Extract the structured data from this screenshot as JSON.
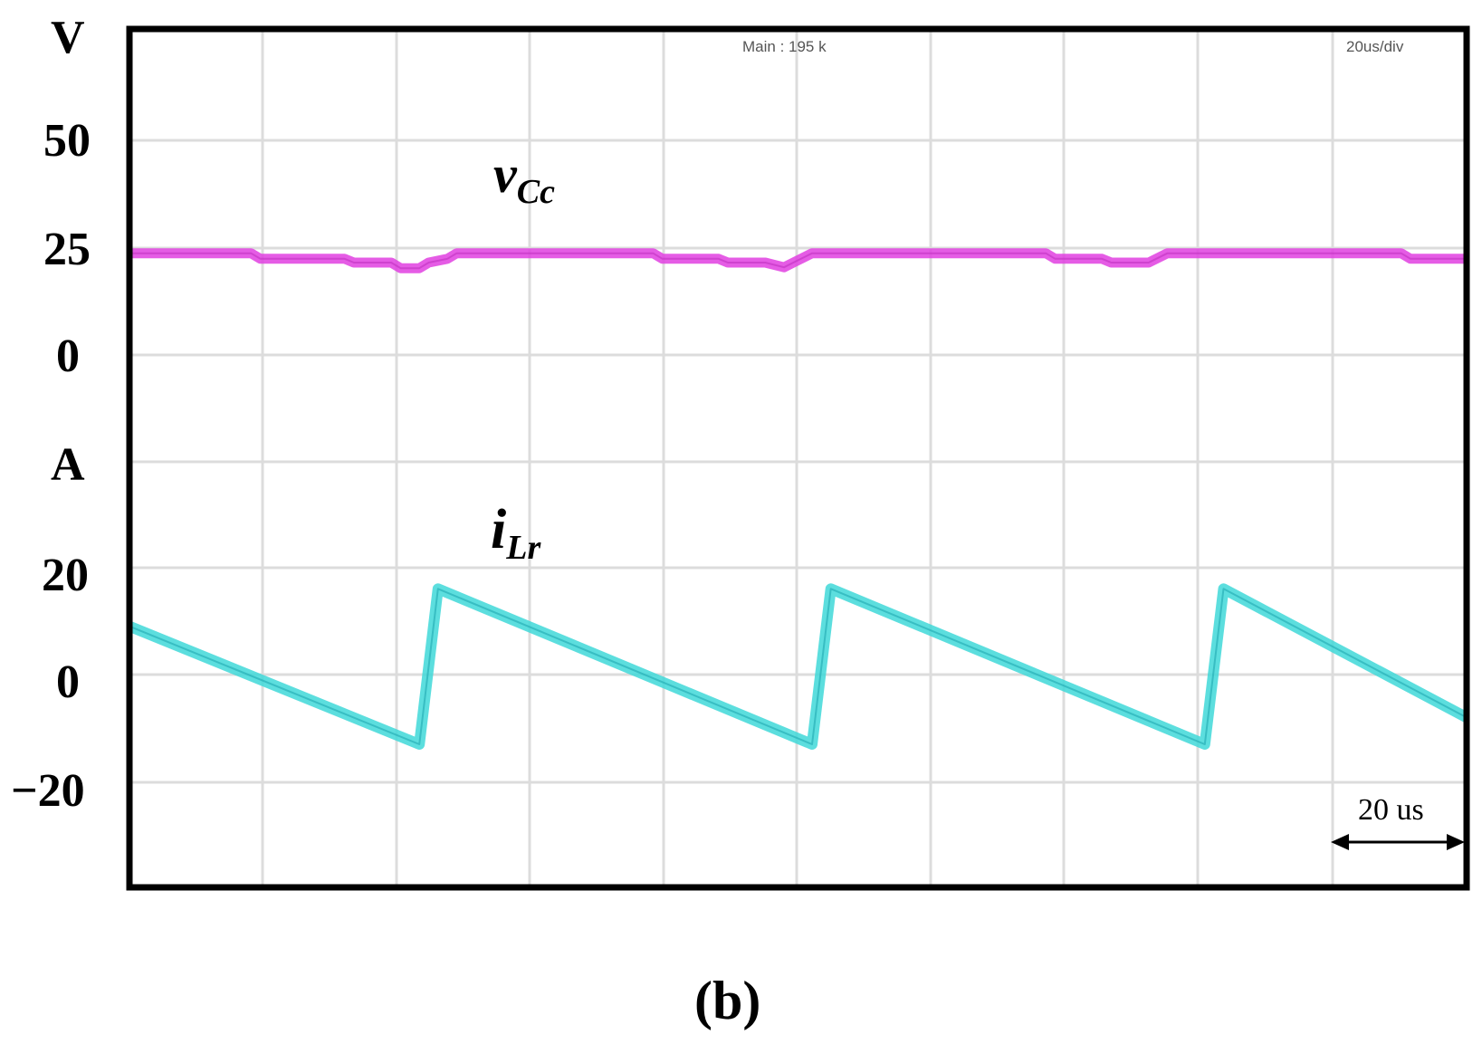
{
  "chart_data": {
    "type": "line",
    "title": "",
    "panel_label": "(b)",
    "header_left": "Main : 195 k",
    "header_right": "20us/div",
    "time_scale": {
      "label": "20 us",
      "value_us": 20
    },
    "x_divisions": 10,
    "time_per_div_us": 20,
    "voltage_axis": {
      "unit": "V",
      "ticks": [
        {
          "label": "50",
          "value": 50
        },
        {
          "label": "25",
          "value": 25
        },
        {
          "label": "0",
          "value": 0
        }
      ]
    },
    "current_axis": {
      "unit": "A",
      "ticks": [
        {
          "label": "20",
          "value": 20
        },
        {
          "label": "0",
          "value": 0
        },
        {
          "label": "−20",
          "value": -20
        }
      ]
    },
    "series": [
      {
        "name": "v_Cc",
        "label_main": "v",
        "label_sub": "Cc",
        "axis": "voltage",
        "color": "#e040e0",
        "points": [
          [
            0,
            23.8
          ],
          [
            26,
            23.8
          ],
          [
            28,
            22.5
          ],
          [
            46,
            22.5
          ],
          [
            48,
            21.6
          ],
          [
            56,
            21.6
          ],
          [
            58,
            20.3
          ],
          [
            62,
            20.3
          ],
          [
            64,
            21.6
          ],
          [
            68,
            22.5
          ],
          [
            70,
            23.8
          ],
          [
            112,
            23.8
          ],
          [
            114,
            22.5
          ],
          [
            126,
            22.5
          ],
          [
            128,
            21.6
          ],
          [
            136,
            21.6
          ],
          [
            140,
            20.5
          ],
          [
            142,
            21.6
          ],
          [
            146,
            23.8
          ],
          [
            196,
            23.8
          ],
          [
            198,
            22.5
          ],
          [
            208,
            22.5
          ],
          [
            210,
            21.6
          ],
          [
            218,
            21.6
          ],
          [
            222,
            23.8
          ],
          [
            272,
            23.8
          ],
          [
            274,
            22.5
          ],
          [
            286,
            22.5
          ]
        ]
      },
      {
        "name": "i_Lr",
        "label_main": "i",
        "label_sub": "Lr",
        "axis": "current",
        "color": "#40d8d8",
        "points": [
          [
            0,
            9
          ],
          [
            62,
            -13
          ],
          [
            66,
            16
          ],
          [
            146,
            -13
          ],
          [
            150,
            16
          ],
          [
            230,
            -13
          ],
          [
            234,
            16
          ],
          [
            286,
            -8
          ]
        ]
      }
    ]
  }
}
